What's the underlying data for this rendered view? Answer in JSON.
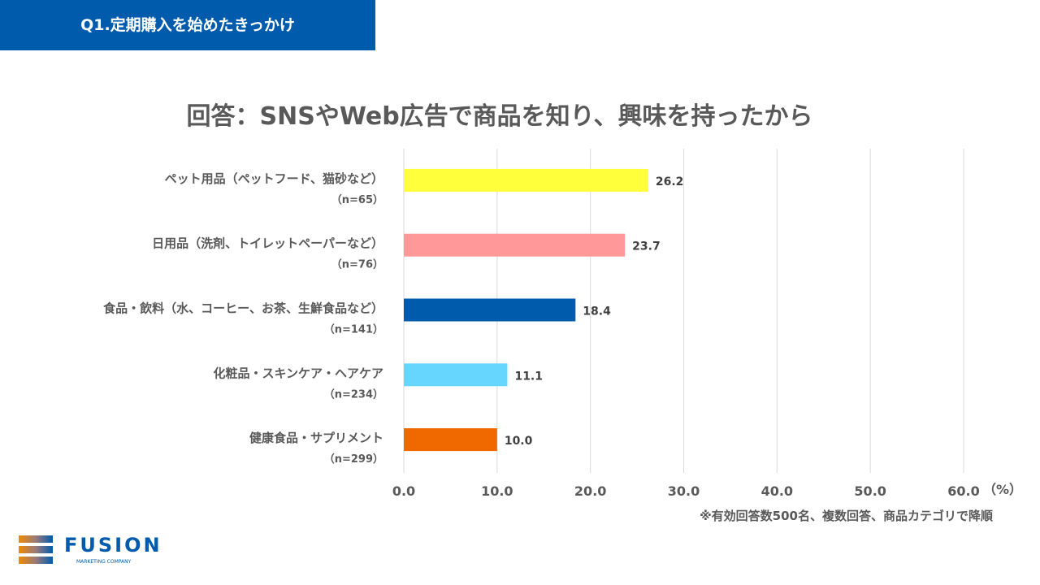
{
  "header": {
    "title": "Q1.定期購入を始めたきっかけ"
  },
  "chart_data": {
    "type": "bar",
    "orientation": "horizontal",
    "title": "回答：SNSやWeb広告で商品を知り、興味を持ったから",
    "categories": [
      "ペット用品（ペットフード、猫砂など）",
      "日用品（洗剤、トイレットペーパーなど）",
      "食品・飲料（水、コーヒー、お茶、生鮮食品など）",
      "化粧品・スキンケア・ヘアケア",
      "健康食品・サプリメント"
    ],
    "sample_sizes": [
      "（n=65）",
      "（n=76）",
      "（n=141）",
      "（n=234）",
      "（n=299）"
    ],
    "values": [
      26.2,
      23.7,
      18.4,
      11.1,
      10.0
    ],
    "data_labels": [
      "26.2",
      "23.7",
      "18.4",
      "11.1",
      "10.0"
    ],
    "colors": [
      "#ffff3b",
      "#ff9999",
      "#005bac",
      "#66d6ff",
      "#f06800"
    ],
    "xlim": [
      0,
      60
    ],
    "ticks": [
      "0.0",
      "10.0",
      "20.0",
      "30.0",
      "40.0",
      "50.0",
      "60.0"
    ],
    "unit": "（%）",
    "grid": true
  },
  "note": "※有効回答数500名、複数回答、商品カテゴリで降順",
  "logo": {
    "name": "FUSION",
    "sub": "MARKETING COMPANY"
  }
}
